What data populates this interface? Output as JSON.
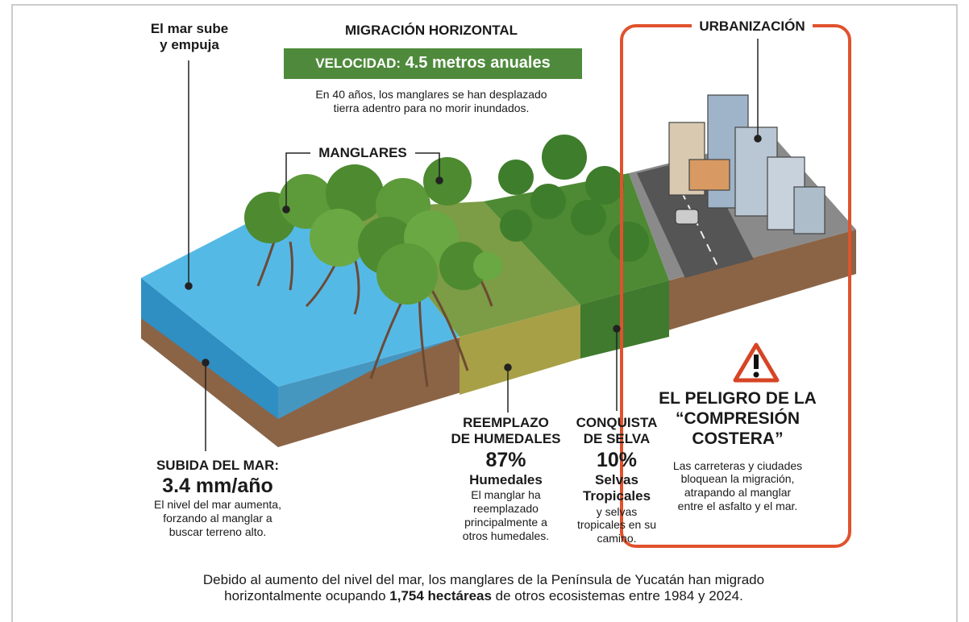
{
  "sea_push": {
    "lines": [
      "El mar sube",
      "y empuja"
    ]
  },
  "migration": {
    "title": "MIGRACIÓN HORIZONTAL",
    "speed_label": "VELOCIDAD:",
    "speed_value": "4.5 metros anuales",
    "description": [
      "En 40 años, los manglares se han desplazado",
      "tierra adentro para no morir inundados."
    ]
  },
  "mangroves_label": "MANGLARES",
  "urbanization_label": "URBANIZACIÓN",
  "sea_rise": {
    "title": "SUBIDA DEL MAR:",
    "value": "3.4 mm/año",
    "description": [
      "El nivel del mar aumenta,",
      "forzando al manglar a",
      "buscar terreno alto."
    ]
  },
  "wetlands": {
    "title": [
      "REEMPLAZO",
      "DE HUMEDALES"
    ],
    "percent": "87%",
    "name": "Humedales",
    "description": [
      "El manglar ha",
      "reemplazado",
      "principalmente a",
      "otros humedales."
    ]
  },
  "jungle": {
    "title": [
      "CONQUISTA",
      "DE SELVA"
    ],
    "percent": "10%",
    "name": [
      "Selvas",
      "Tropicales"
    ],
    "description": [
      "y selvas",
      "tropicales en su",
      "camino."
    ]
  },
  "danger": {
    "title": [
      "EL PELIGRO DE LA",
      "“COMPRESIÓN",
      "COSTERA”"
    ],
    "description": [
      "Las carreteras y ciudades",
      "bloquean la migración,",
      "atrapando al manglar",
      "entre el asfalto y el mar."
    ]
  },
  "footer": {
    "line1": "Debido al aumento del nivel del mar, los manglares de la Península de Yucatán han migrado",
    "line2_before": "horizontalmente ocupando",
    "highlight": "1,754 hectáreas",
    "line2_after": "de otros ecosistemas entre 1984 y 2024."
  }
}
